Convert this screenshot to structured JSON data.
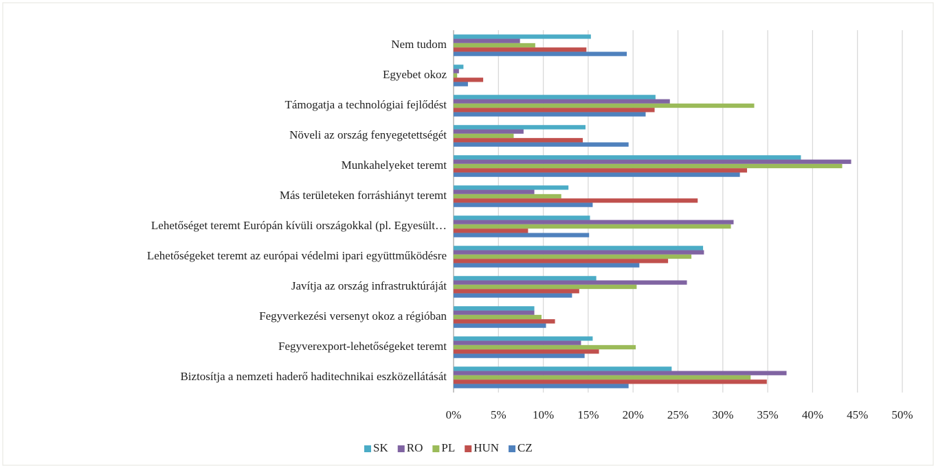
{
  "chart_data": {
    "type": "bar",
    "orientation": "horizontal",
    "categories": [
      "Nem tudom",
      "Egyebet okoz",
      "Támogatja a technológiai fejlődést",
      "Növeli az ország fenyegetettségét",
      "Munkahelyeket teremt",
      "Más területeken forráshiányt teremt",
      "Lehetőséget teremt Európán kívüli országokkal (pl. Egyesült…",
      "Lehetőségeket teremt az európai védelmi ipari együttműködésre",
      "Javítja az ország infrastruktúráját",
      "Fegyverkezési versenyt okoz a régióban",
      "Fegyverexport-lehetőségeket teremt",
      "Biztosítja a nemzeti haderő haditechnikai eszközellátását"
    ],
    "series": [
      {
        "name": "SK",
        "color": "#4bacc6",
        "values": [
          15.3,
          1.1,
          22.5,
          14.7,
          38.7,
          12.8,
          15.2,
          27.8,
          15.9,
          9.0,
          15.5,
          24.3
        ]
      },
      {
        "name": "RO",
        "color": "#8064a2",
        "values": [
          7.4,
          0.6,
          24.1,
          7.8,
          44.3,
          9.0,
          31.2,
          27.9,
          26.0,
          9.0,
          14.2,
          37.1
        ]
      },
      {
        "name": "PL",
        "color": "#9bbb59",
        "values": [
          9.1,
          0.4,
          33.5,
          6.7,
          43.3,
          12.0,
          30.9,
          26.5,
          20.4,
          9.8,
          20.3,
          33.1
        ]
      },
      {
        "name": "HUN",
        "color": "#c0504d",
        "values": [
          14.8,
          3.3,
          22.4,
          14.4,
          32.7,
          27.2,
          8.3,
          23.9,
          14.0,
          11.3,
          16.2,
          34.9
        ]
      },
      {
        "name": "CZ",
        "color": "#4f81bd",
        "values": [
          19.3,
          1.6,
          21.4,
          19.5,
          31.9,
          15.5,
          15.1,
          20.7,
          13.2,
          10.3,
          14.6,
          19.5
        ]
      }
    ],
    "xlim": [
      0,
      50
    ],
    "xticks": [
      {
        "value": 0,
        "label": "0%"
      },
      {
        "value": 5,
        "label": "5%"
      },
      {
        "value": 10,
        "label": "10%"
      },
      {
        "value": 15,
        "label": "15%"
      },
      {
        "value": 20,
        "label": "20%"
      },
      {
        "value": 25,
        "label": "25%"
      },
      {
        "value": 30,
        "label": "30%"
      },
      {
        "value": 35,
        "label": "35%"
      },
      {
        "value": 40,
        "label": "40%"
      },
      {
        "value": 45,
        "label": "45%"
      },
      {
        "value": 50,
        "label": "50%"
      }
    ],
    "grid": true,
    "legend": "bottom"
  }
}
